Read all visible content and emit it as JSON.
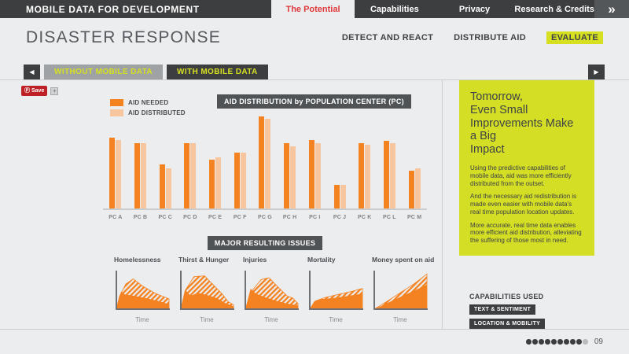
{
  "topbar": {
    "title": "MOBILE DATA FOR DEVELOPMENT",
    "tabs": [
      {
        "label": "The Potential",
        "active": true
      },
      {
        "label": "Capabilities",
        "active": false
      },
      {
        "label": "Privacy",
        "active": false
      },
      {
        "label": "Research & Credits",
        "active": false
      }
    ]
  },
  "icons": {
    "double_chevron": "»",
    "back_arrow": "◀",
    "forward_arrow": "▶",
    "pinterest_glyph": "Ⓟ",
    "share_glyph": "+"
  },
  "header": {
    "title": "DISASTER RESPONSE",
    "subnav": [
      {
        "label": "DETECT AND REACT",
        "active": false
      },
      {
        "label": "DISTRIBUTE AID",
        "active": false
      },
      {
        "label": "EVALUATE",
        "active": true
      }
    ]
  },
  "scenario_tabs": {
    "without_label": "WITHOUT MOBILE DATA",
    "with_label": "WITH MOBILE DATA",
    "active": "WITH MOBILE DATA"
  },
  "share": {
    "pinterest_label": "Save"
  },
  "colors": {
    "orange": "#f58220",
    "orange_light": "#f8c69e",
    "yellow_green": "#d6e021",
    "dark": "#3d3e40",
    "red_active": "#e0393d"
  },
  "chart_data": [
    {
      "type": "bar",
      "title": "AID DISTRIBUTION by POPULATION CENTER (PC)",
      "categories": [
        "PC A",
        "PC B",
        "PC C",
        "PC D",
        "PC E",
        "PC F",
        "PC G",
        "PC H",
        "PC I",
        "PC J",
        "PC K",
        "PC L",
        "PC M"
      ],
      "series": [
        {
          "name": "AID NEEDED",
          "color": "#f58220",
          "values": [
            74,
            69,
            46,
            69,
            51,
            59,
            97,
            69,
            72,
            25,
            69,
            71,
            40
          ]
        },
        {
          "name": "AID DISTRIBUTED",
          "color": "#f8c69e",
          "values": [
            72,
            69,
            42,
            69,
            54,
            59,
            94,
            65,
            69,
            25,
            67,
            69,
            42
          ]
        }
      ],
      "ylim": [
        0,
        100
      ],
      "grid": false,
      "legend_position": "top-left"
    },
    {
      "type": "area",
      "group_title": "MAJOR RESULTING ISSUES",
      "xlabel": "Time",
      "charts": [
        {
          "title": "Homelessness",
          "series": [
            {
              "style": "hatched",
              "points": [
                [
                  0,
                  0
                ],
                [
                  0.06,
                  0.35
                ],
                [
                  0.18,
                  0.68
                ],
                [
                  0.32,
                  0.82
                ],
                [
                  0.5,
                  0.62
                ],
                [
                  0.75,
                  0.42
                ],
                [
                  1,
                  0.28
                ],
                [
                  1,
                  0
                ]
              ]
            },
            {
              "style": "solid",
              "points": [
                [
                  0,
                  0
                ],
                [
                  0.09,
                  0.48
                ],
                [
                  0.16,
                  0.4
                ],
                [
                  0.3,
                  0.37
                ],
                [
                  0.55,
                  0.3
                ],
                [
                  0.8,
                  0.22
                ],
                [
                  1,
                  0.13
                ],
                [
                  1,
                  0
                ]
              ]
            }
          ]
        },
        {
          "title": "Thirst & Hunger",
          "series": [
            {
              "style": "hatched",
              "points": [
                [
                  0,
                  0
                ],
                [
                  0.08,
                  0.5
                ],
                [
                  0.25,
                  0.88
                ],
                [
                  0.45,
                  0.9
                ],
                [
                  0.6,
                  0.68
                ],
                [
                  0.78,
                  0.42
                ],
                [
                  0.9,
                  0.2
                ],
                [
                  1,
                  0.12
                ],
                [
                  1,
                  0
                ]
              ]
            },
            {
              "style": "solid",
              "points": [
                [
                  0,
                  0
                ],
                [
                  0.09,
                  0.52
                ],
                [
                  0.18,
                  0.36
                ],
                [
                  0.32,
                  0.44
                ],
                [
                  0.5,
                  0.38
                ],
                [
                  0.68,
                  0.3
                ],
                [
                  0.85,
                  0.16
                ],
                [
                  1,
                  0.08
                ],
                [
                  1,
                  0
                ]
              ]
            }
          ]
        },
        {
          "title": "Injuries",
          "series": [
            {
              "style": "hatched",
              "points": [
                [
                  0,
                  0
                ],
                [
                  0.1,
                  0.45
                ],
                [
                  0.3,
                  0.8
                ],
                [
                  0.45,
                  0.85
                ],
                [
                  0.62,
                  0.6
                ],
                [
                  0.8,
                  0.35
                ],
                [
                  0.9,
                  0.3
                ],
                [
                  1,
                  0.15
                ],
                [
                  1,
                  0
                ]
              ]
            },
            {
              "style": "solid",
              "points": [
                [
                  0,
                  0
                ],
                [
                  0.1,
                  0.55
                ],
                [
                  0.2,
                  0.42
                ],
                [
                  0.38,
                  0.32
                ],
                [
                  0.6,
                  0.22
                ],
                [
                  0.8,
                  0.15
                ],
                [
                  1,
                  0.1
                ],
                [
                  1,
                  0
                ]
              ]
            }
          ]
        },
        {
          "title": "Mortality",
          "series": [
            {
              "style": "hatched",
              "points": [
                [
                  0,
                  0
                ],
                [
                  0.1,
                  0.22
                ],
                [
                  0.3,
                  0.32
                ],
                [
                  0.55,
                  0.4
                ],
                [
                  0.8,
                  0.48
                ],
                [
                  1,
                  0.56
                ],
                [
                  1,
                  0
                ]
              ]
            },
            {
              "style": "solid",
              "points": [
                [
                  0,
                  0
                ],
                [
                  0.08,
                  0.2
                ],
                [
                  0.2,
                  0.27
                ],
                [
                  0.45,
                  0.3
                ],
                [
                  0.7,
                  0.35
                ],
                [
                  1,
                  0.42
                ],
                [
                  1,
                  0
                ]
              ]
            }
          ]
        },
        {
          "title": "Money spent on aid",
          "series": [
            {
              "style": "hatched",
              "points": [
                [
                  0,
                  0
                ],
                [
                  0.25,
                  0.22
                ],
                [
                  0.5,
                  0.45
                ],
                [
                  0.75,
                  0.68
                ],
                [
                  1,
                  0.95
                ],
                [
                  1,
                  0
                ]
              ]
            },
            {
              "style": "solid",
              "points": [
                [
                  0,
                  0
                ],
                [
                  0.3,
                  0.2
                ],
                [
                  0.6,
                  0.4
                ],
                [
                  1,
                  0.66
                ],
                [
                  1,
                  0
                ]
              ]
            }
          ]
        }
      ]
    }
  ],
  "sidebar": {
    "heading_lines": [
      "Tomorrow,",
      "Even Small",
      "Improvements Make",
      "a Big",
      "Impact"
    ],
    "paragraphs": [
      "Using the predictive capabilities of mobile data, aid was more efficiently distributed from the outset.",
      "And the necessary aid redistribution is made even easier with mobile data's real time population location updates.",
      "More accurate, real time data enables more efficient aid distribution, alleviating the suffering of those most in need."
    ],
    "capabilities_heading": "CAPABILITIES USED",
    "capabilities": [
      "TEXT & SENTIMENT",
      "LOCATION & MOBILITY"
    ]
  },
  "footer": {
    "page_number": "09",
    "dots_total": 10,
    "dots_filled": 9
  }
}
